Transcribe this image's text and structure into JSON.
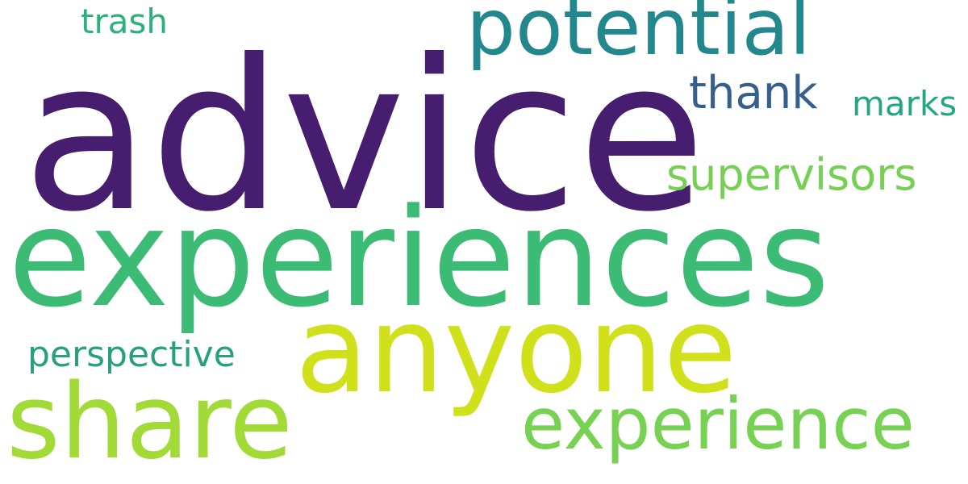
{
  "words": [
    {
      "text": "advice",
      "color": "#471e6f"
    },
    {
      "text": "experiences",
      "color": "#3cbb75"
    },
    {
      "text": "anyone",
      "color": "#d0e11c"
    },
    {
      "text": "potential",
      "color": "#23888e"
    },
    {
      "text": "share",
      "color": "#a2da37"
    },
    {
      "text": "experience",
      "color": "#77d153"
    },
    {
      "text": "supervisors",
      "color": "#75d054"
    },
    {
      "text": "thank",
      "color": "#355f8d"
    },
    {
      "text": "marks",
      "color": "#22a784"
    },
    {
      "text": "perspective",
      "color": "#26a07f"
    },
    {
      "text": "trash",
      "color": "#2cb17b"
    }
  ]
}
